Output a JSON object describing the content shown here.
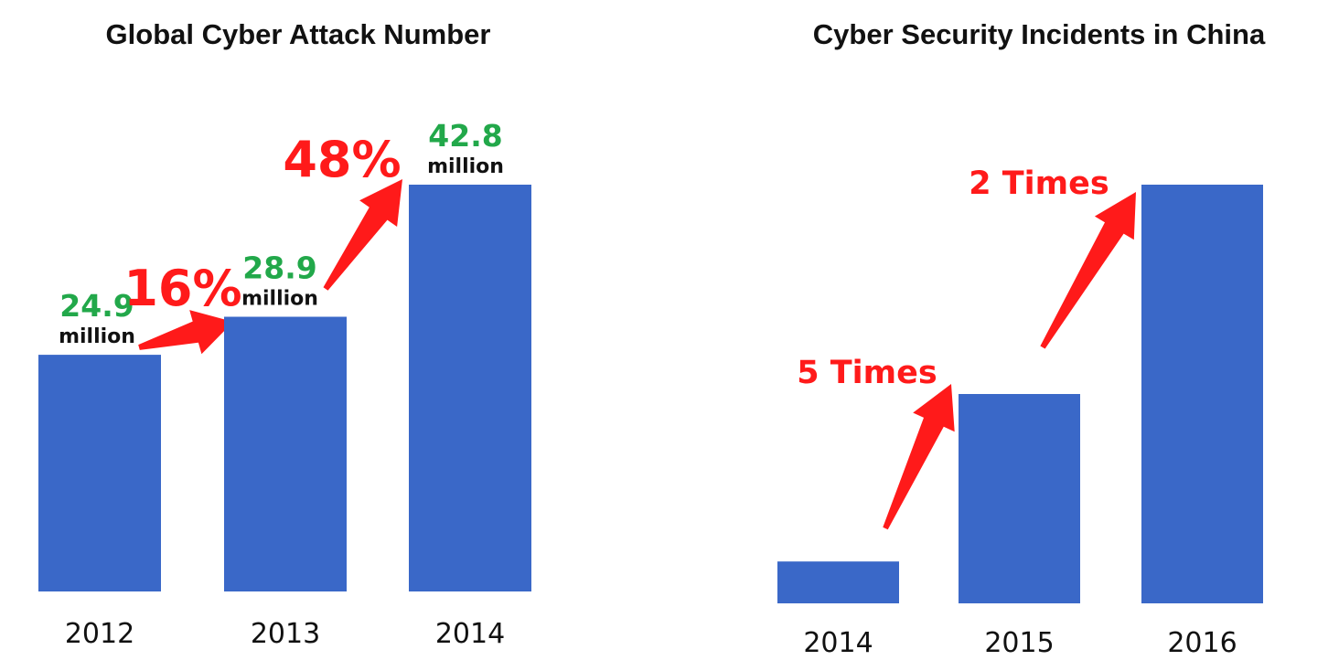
{
  "colors": {
    "bar": "#3a68c8",
    "value_label": "#22a84a",
    "growth": "#ff1a1a",
    "text": "#111111"
  },
  "chart_data": [
    {
      "type": "bar",
      "title": "Global Cyber Attack Number",
      "categories": [
        "2012",
        "2013",
        "2014"
      ],
      "values": [
        24.9,
        28.9,
        42.8
      ],
      "value_labels": [
        "24.9",
        "28.9",
        "42.8"
      ],
      "unit": "million",
      "axis_visible": false,
      "grid": false,
      "annotations": [
        {
          "text": "16%",
          "from": "2012",
          "to": "2013"
        },
        {
          "text": "48%",
          "from": "2013",
          "to": "2014"
        }
      ]
    },
    {
      "type": "bar",
      "title": "Cyber Security Incidents in China",
      "categories": [
        "2014",
        "2015",
        "2016"
      ],
      "values": [
        1,
        5,
        10
      ],
      "axis_visible": false,
      "grid": false,
      "annotations": [
        {
          "text": "5 Times",
          "from": "2014",
          "to": "2015"
        },
        {
          "text": "2 Times",
          "from": "2015",
          "to": "2016"
        }
      ]
    }
  ]
}
